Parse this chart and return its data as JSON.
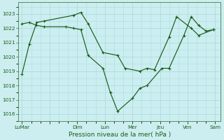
{
  "xlabel": "Pression niveau de la mer( hPa )",
  "background_color": "#cceef0",
  "grid_color": "#aadddf",
  "line_color": "#1a5c1a",
  "ylim": [
    1015.5,
    1023.8
  ],
  "yticks": [
    1016,
    1017,
    1018,
    1019,
    1020,
    1021,
    1022,
    1023
  ],
  "xlim": [
    -0.2,
    10.8
  ],
  "series1_x": [
    0.0,
    0.4,
    0.8,
    1.2,
    2.8,
    3.2,
    3.6,
    4.4,
    5.2,
    5.6,
    6.4,
    6.8,
    7.2,
    8.0,
    8.4,
    9.2,
    9.6,
    10.4
  ],
  "series1_y": [
    1018.8,
    1020.9,
    1022.4,
    1022.5,
    1022.9,
    1023.1,
    1022.3,
    1020.3,
    1020.1,
    1019.2,
    1019.0,
    1019.2,
    1019.1,
    1021.4,
    1022.8,
    1022.0,
    1021.5,
    1021.9
  ],
  "series2_x": [
    0.0,
    0.4,
    0.8,
    1.2,
    2.4,
    2.8,
    3.2,
    3.6,
    4.4,
    4.8,
    5.2,
    6.0,
    6.4,
    6.8,
    7.6,
    8.0,
    8.8,
    9.2,
    9.6,
    10.0,
    10.4
  ],
  "series2_y": [
    1022.3,
    1022.4,
    1022.2,
    1022.1,
    1022.1,
    1022.0,
    1021.9,
    1020.1,
    1019.2,
    1017.5,
    1016.2,
    1017.1,
    1017.8,
    1018.0,
    1019.2,
    1019.2,
    1021.5,
    1022.8,
    1022.2,
    1021.8,
    1021.9
  ],
  "xtick_positions": [
    0.0,
    1.5,
    3.0,
    4.5,
    6.0,
    7.5,
    9.0,
    10.5
  ],
  "xtick_labels": [
    "LuMar",
    "",
    "Dim",
    "Lun",
    "Mer",
    "Jeu",
    "Ven",
    "Sam"
  ]
}
